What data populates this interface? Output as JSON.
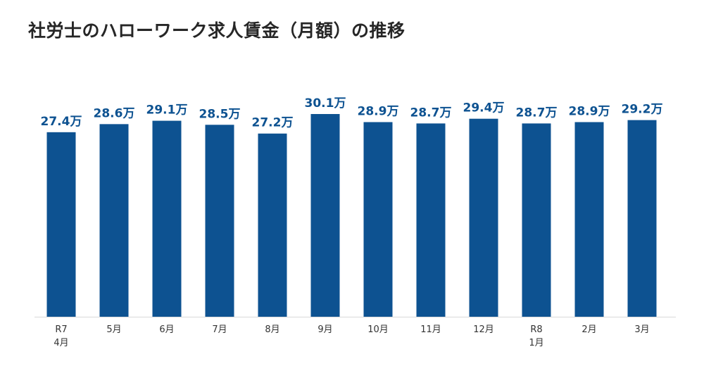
{
  "title": "社労士のハローワーク求人賃金（月額）の推移",
  "colors": {
    "bar": "#0d5291",
    "value_label": "#0d5291",
    "axis": "#d9d9d9",
    "tick_text": "#333333"
  },
  "chart_data": {
    "type": "bar",
    "title": "社労士のハローワーク求人賃金（月額）の推移",
    "categories": [
      "R7 4月",
      "5月",
      "6月",
      "7月",
      "8月",
      "9月",
      "10月",
      "11月",
      "12月",
      "R8 1月",
      "2月",
      "3月"
    ],
    "category_lines": [
      [
        "R7",
        "4月"
      ],
      [
        "5月"
      ],
      [
        "6月"
      ],
      [
        "7月"
      ],
      [
        "8月"
      ],
      [
        "9月"
      ],
      [
        "10月"
      ],
      [
        "11月"
      ],
      [
        "12月"
      ],
      [
        "R8",
        "1月"
      ],
      [
        "2月"
      ],
      [
        "3月"
      ]
    ],
    "values": [
      27.4,
      28.6,
      29.1,
      28.5,
      27.2,
      30.1,
      28.9,
      28.7,
      29.4,
      28.7,
      28.9,
      29.2
    ],
    "value_labels": [
      "27.4万",
      "28.6万",
      "29.1万",
      "28.5万",
      "27.2万",
      "30.1万",
      "28.9万",
      "28.7万",
      "29.4万",
      "28.7万",
      "28.9万",
      "29.2万"
    ],
    "ylim": [
      0,
      30.1
    ],
    "grid": false,
    "legend": "none"
  }
}
